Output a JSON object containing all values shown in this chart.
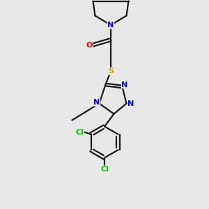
{
  "background_color": "#e8e8e8",
  "bond_color": "#1a1a1a",
  "n_color": "#0000ff",
  "o_color": "#ff0000",
  "s_color": "#ccaa00",
  "cl_color": "#00cc00",
  "line_width": 1.6,
  "figsize": [
    3.0,
    3.0
  ],
  "dpi": 100,
  "xlim": [
    0,
    10
  ],
  "ylim": [
    0,
    10
  ]
}
